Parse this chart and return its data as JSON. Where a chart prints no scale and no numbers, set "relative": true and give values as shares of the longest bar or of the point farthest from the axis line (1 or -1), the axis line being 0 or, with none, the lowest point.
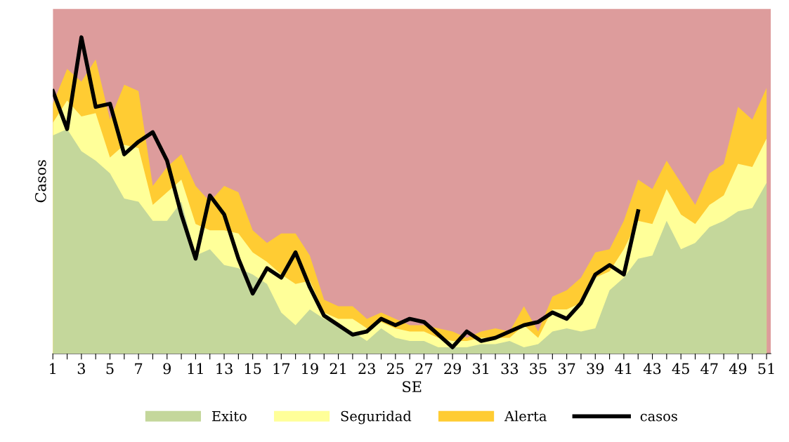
{
  "chart_data": {
    "type": "area",
    "relative": true,
    "xlabel": "SE",
    "ylabel": "Casos",
    "categories": [
      "1",
      null,
      "3",
      null,
      "5",
      null,
      "7",
      null,
      "9",
      null,
      "11",
      null,
      "13",
      null,
      "15",
      null,
      "17",
      null,
      "19",
      null,
      "21",
      null,
      "23",
      null,
      "25",
      null,
      "27",
      null,
      "29",
      null,
      "31",
      null,
      "33",
      null,
      "35",
      null,
      "37",
      null,
      "39",
      null,
      "41",
      null,
      "43",
      null,
      "45",
      null,
      "47",
      null,
      "49",
      null,
      "51"
    ],
    "series": [
      {
        "name": "Exito",
        "color": "#c4d79b",
        "values": [
          0.69,
          0.71,
          0.64,
          0.61,
          0.57,
          0.49,
          0.48,
          0.42,
          0.42,
          0.48,
          0.31,
          0.33,
          0.28,
          0.27,
          0.25,
          0.22,
          0.13,
          0.09,
          0.14,
          0.11,
          0.09,
          0.07,
          0.04,
          0.08,
          0.05,
          0.04,
          0.04,
          0.02,
          0.02,
          0.02,
          0.03,
          0.03,
          0.04,
          0.02,
          0.03,
          0.07,
          0.08,
          0.07,
          0.08,
          0.2,
          0.24,
          0.3,
          0.31,
          0.42,
          0.33,
          0.35,
          0.4,
          0.42,
          0.45,
          0.46,
          0.54
        ]
      },
      {
        "name": "Seguridad",
        "color": "#ffff99",
        "values": [
          0.73,
          0.8,
          0.75,
          0.76,
          0.62,
          0.66,
          0.65,
          0.47,
          0.51,
          0.55,
          0.41,
          0.39,
          0.39,
          0.38,
          0.32,
          0.29,
          0.25,
          0.22,
          0.23,
          0.13,
          0.11,
          0.11,
          0.08,
          0.1,
          0.08,
          0.07,
          0.07,
          0.05,
          0.04,
          0.04,
          0.05,
          0.05,
          0.05,
          0.09,
          0.05,
          0.14,
          0.14,
          0.16,
          0.24,
          0.26,
          0.33,
          0.42,
          0.41,
          0.52,
          0.44,
          0.41,
          0.47,
          0.5,
          0.6,
          0.59,
          0.68
        ]
      },
      {
        "name": "Alerta",
        "color": "#ffcc33",
        "values": [
          0.79,
          0.9,
          0.86,
          0.93,
          0.74,
          0.85,
          0.83,
          0.53,
          0.59,
          0.63,
          0.53,
          0.48,
          0.53,
          0.51,
          0.39,
          0.35,
          0.38,
          0.38,
          0.31,
          0.17,
          0.15,
          0.15,
          0.11,
          0.13,
          0.11,
          0.09,
          0.09,
          0.08,
          0.07,
          0.05,
          0.07,
          0.08,
          0.07,
          0.15,
          0.07,
          0.18,
          0.2,
          0.24,
          0.32,
          0.33,
          0.42,
          0.55,
          0.52,
          0.61,
          0.54,
          0.47,
          0.57,
          0.6,
          0.78,
          0.74,
          0.84
        ]
      },
      {
        "name": "casos",
        "type": "line",
        "color": "#000000",
        "values": [
          0.83,
          0.71,
          1,
          0.78,
          0.79,
          0.63,
          0.67,
          0.7,
          0.61,
          0.44,
          0.3,
          0.5,
          0.44,
          0.3,
          0.19,
          0.27,
          0.24,
          0.32,
          0.21,
          0.12,
          0.09,
          0.06,
          0.07,
          0.11,
          0.09,
          0.11,
          0.1,
          0.06,
          0.02,
          0.07,
          0.04,
          0.05,
          0.07,
          0.09,
          0.1,
          0.13,
          0.11,
          0.16,
          0.25,
          0.28,
          0.25,
          0.45,
          null,
          null,
          null,
          null,
          null,
          null,
          null,
          null,
          null
        ]
      }
    ],
    "bands": [
      {
        "axis": "y",
        "from": 0,
        "to": 1.09,
        "color": "#dd9c9c"
      }
    ],
    "legend": "bottom"
  }
}
